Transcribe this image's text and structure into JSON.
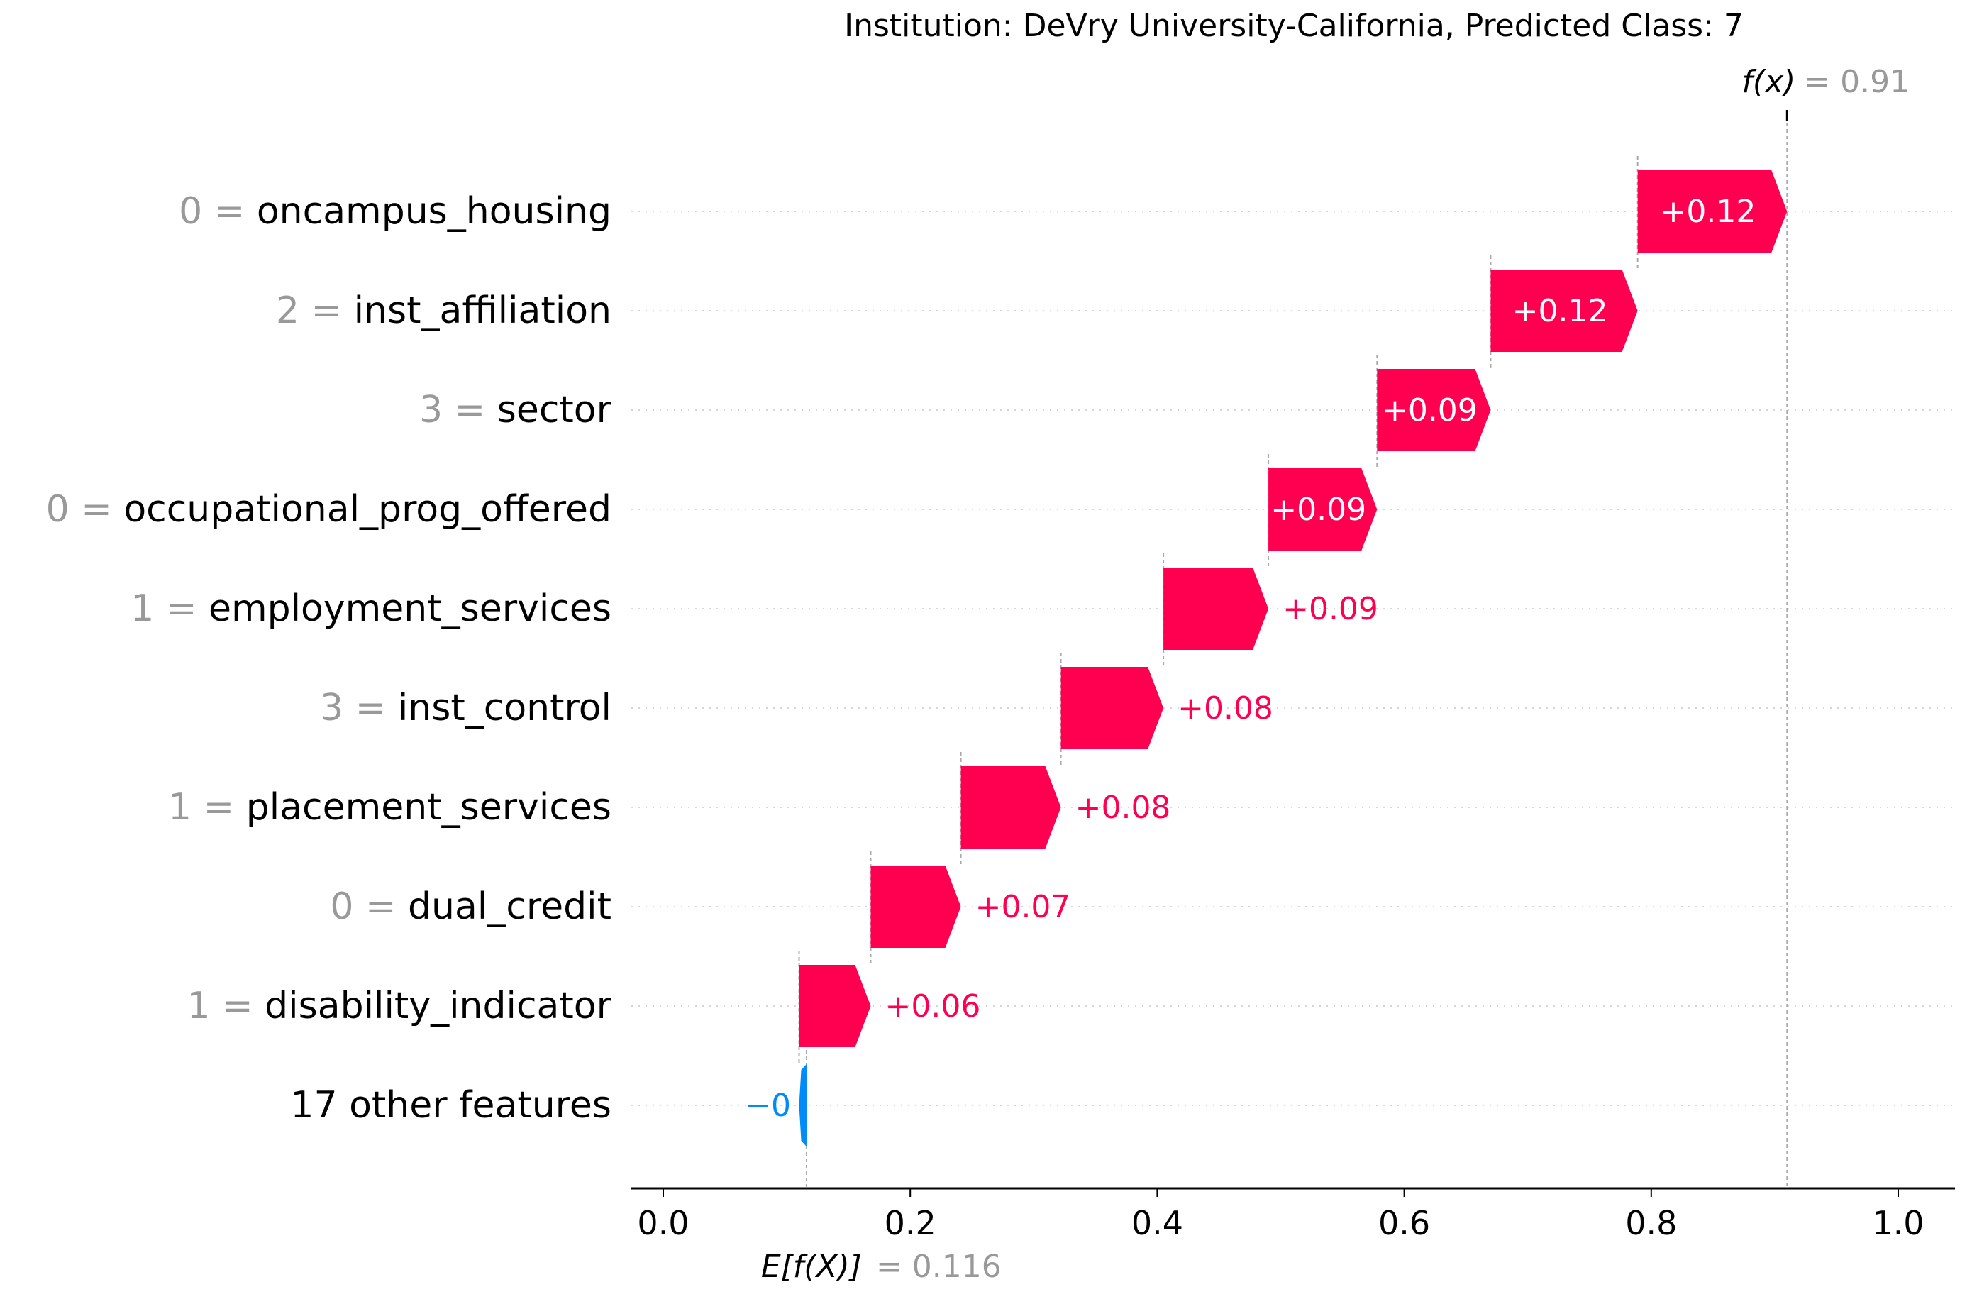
{
  "chart_data": {
    "type": "waterfall",
    "title": "Institution: DeVry University-California, Predicted Class: 7",
    "fx_label": "f(x)",
    "fx_value": 0.91,
    "fx_value_text": "= 0.91",
    "base_label": "E[f(X)]",
    "base_value": 0.116,
    "base_value_text": "= 0.116",
    "xlim": [
      -0.012,
      1.045
    ],
    "x_ticks": [
      0.0,
      0.2,
      0.4,
      0.6,
      0.8,
      1.0
    ],
    "x_tick_labels": [
      "0.0",
      "0.2",
      "0.4",
      "0.6",
      "0.8",
      "1.0"
    ],
    "grid": "horizontal dotted per feature row",
    "colors": {
      "positive": "#ff0051",
      "negative": "#008bfb",
      "feature_value": "#999999",
      "text": "#000000",
      "positive_label_inside": "#ffffff"
    },
    "features": [
      {
        "value": "0",
        "name": "oncampus_housing",
        "shap": 0.12,
        "start": 0.789,
        "end": 0.91,
        "label": "+0.12",
        "label_inside": true
      },
      {
        "value": "2",
        "name": "inst_affiliation",
        "shap": 0.12,
        "start": 0.67,
        "end": 0.789,
        "label": "+0.12",
        "label_inside": true
      },
      {
        "value": "3",
        "name": "sector",
        "shap": 0.09,
        "start": 0.578,
        "end": 0.67,
        "label": "+0.09",
        "label_inside": true
      },
      {
        "value": "0",
        "name": "occupational_prog_offered",
        "shap": 0.09,
        "start": 0.49,
        "end": 0.578,
        "label": "+0.09",
        "label_inside": true
      },
      {
        "value": "1",
        "name": "employment_services",
        "shap": 0.09,
        "start": 0.405,
        "end": 0.49,
        "label": "+0.09",
        "label_inside": false
      },
      {
        "value": "3",
        "name": "inst_control",
        "shap": 0.08,
        "start": 0.322,
        "end": 0.405,
        "label": "+0.08",
        "label_inside": false
      },
      {
        "value": "1",
        "name": "placement_services",
        "shap": 0.08,
        "start": 0.241,
        "end": 0.322,
        "label": "+0.08",
        "label_inside": false
      },
      {
        "value": "0",
        "name": "dual_credit",
        "shap": 0.07,
        "start": 0.168,
        "end": 0.241,
        "label": "+0.07",
        "label_inside": false
      },
      {
        "value": "1",
        "name": "disability_indicator",
        "shap": 0.06,
        "start": 0.11,
        "end": 0.168,
        "label": "+0.06",
        "label_inside": false
      },
      {
        "value": "",
        "name": "17 other features",
        "shap": -0.0,
        "start": 0.116,
        "end": 0.11,
        "label": "−0",
        "label_inside": false
      }
    ]
  }
}
